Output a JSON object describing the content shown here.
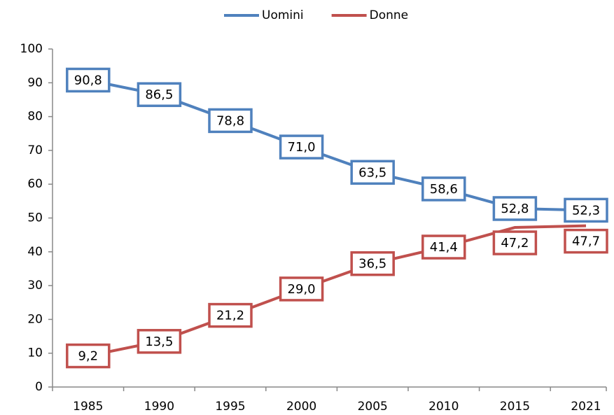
{
  "chart_data": {
    "type": "line",
    "categories": [
      "1985",
      "1990",
      "1995",
      "2000",
      "2005",
      "2010",
      "2015",
      "2021"
    ],
    "series": [
      {
        "name": "Uomini",
        "color": "#4f81bd",
        "values": [
          90.8,
          86.5,
          78.8,
          71.0,
          63.5,
          58.6,
          52.8,
          52.3
        ],
        "value_labels": [
          "90,8",
          "86,5",
          "78,8",
          "71,0",
          "63,5",
          "58,6",
          "52,8",
          "52,3"
        ]
      },
      {
        "name": "Donne",
        "color": "#c0504d",
        "values": [
          9.2,
          13.5,
          21.2,
          29.0,
          36.5,
          41.4,
          47.2,
          47.7
        ],
        "value_labels": [
          "9,2",
          "13,5",
          "21,2",
          "29,0",
          "36,5",
          "41,4",
          "47,2",
          "47,7"
        ]
      }
    ],
    "ylim": [
      0,
      100
    ],
    "yticks": [
      0,
      10,
      20,
      30,
      40,
      50,
      60,
      70,
      80,
      90,
      100
    ],
    "legend": "top",
    "grid": false
  }
}
